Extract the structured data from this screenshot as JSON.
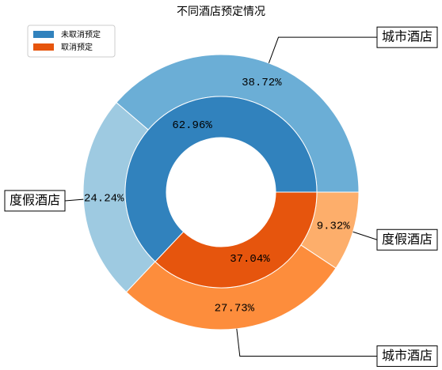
{
  "chart_data": {
    "type": "pie",
    "title": "不同酒店预定情况",
    "inner": {
      "categories": [
        "未取消预定",
        "取消预定"
      ],
      "values": [
        62.96,
        37.04
      ],
      "value_labels": [
        "62.96%",
        "37.04%"
      ],
      "colors": [
        "#3182bd",
        "#e6550d"
      ]
    },
    "outer": {
      "categories": [
        "城市酒店",
        "度假酒店",
        "城市酒店",
        "度假酒店"
      ],
      "values": [
        38.72,
        24.24,
        27.73,
        9.32
      ],
      "value_labels": [
        "38.72%",
        "24.24%",
        "27.73%",
        "9.32%"
      ],
      "colors": [
        "#6baed6",
        "#9ecae1",
        "#fd8d3c",
        "#fdae6b"
      ]
    },
    "legend": "upper left"
  }
}
